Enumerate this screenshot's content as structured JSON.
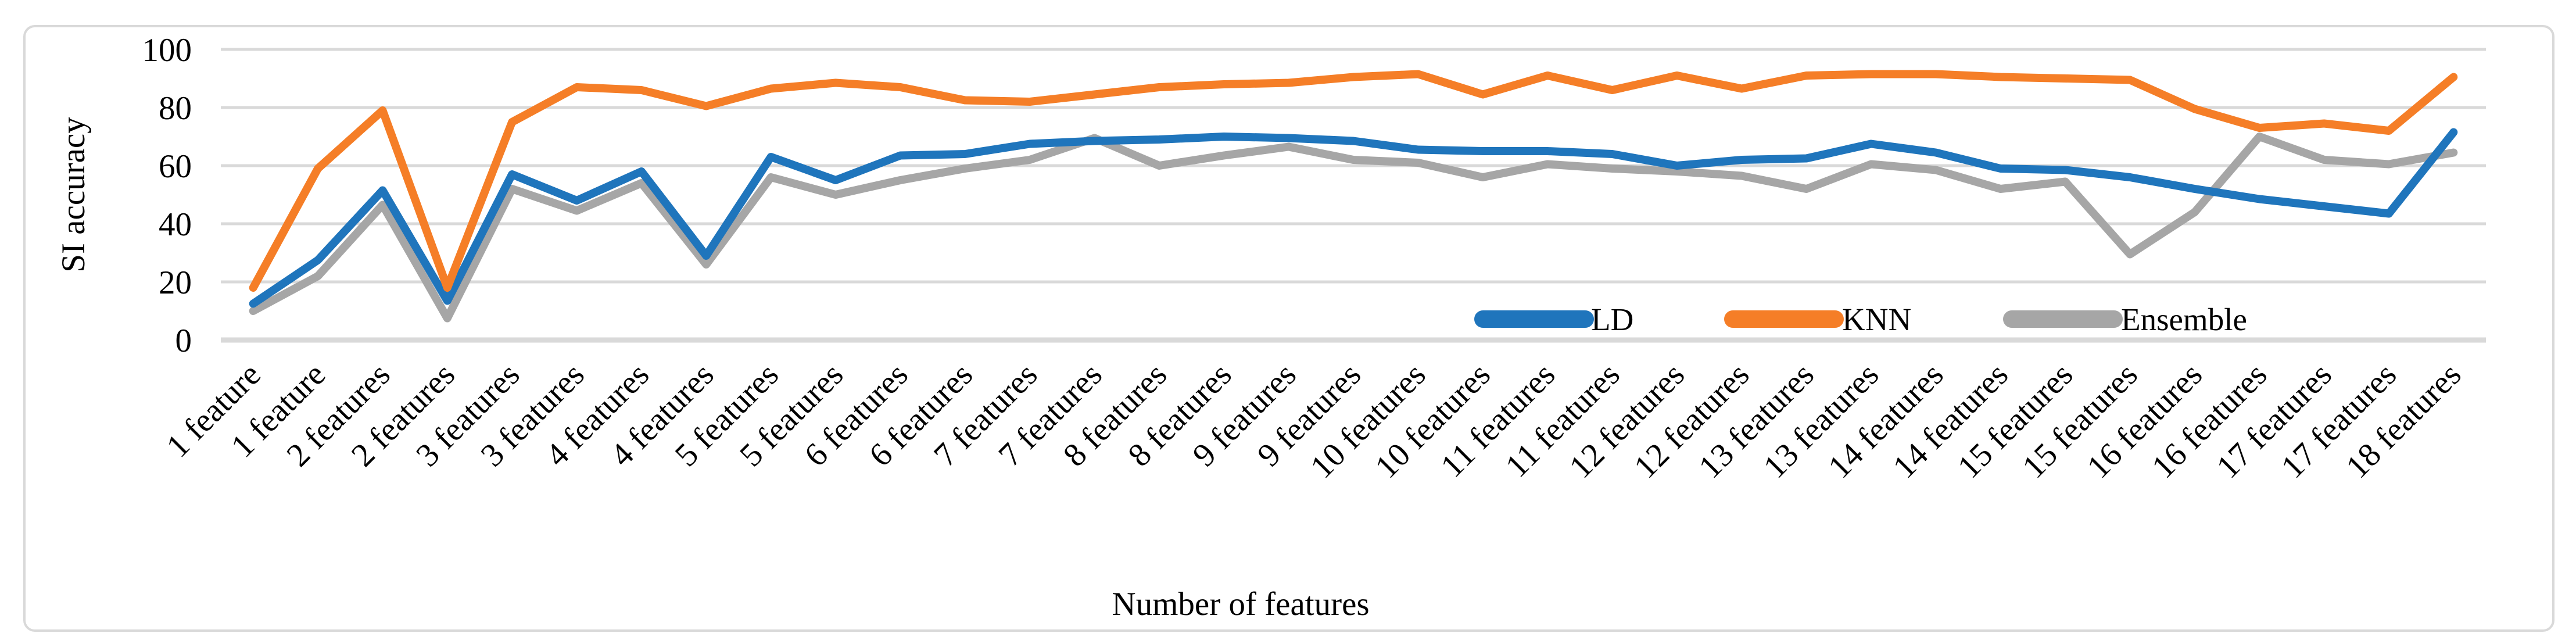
{
  "figure": {
    "background_color": "#FFFFFF",
    "border_color": "#D9D9D9",
    "gridline_color": "#D9D9D9"
  },
  "chart_data": {
    "type": "line",
    "title": "",
    "xlabel": "Number of features",
    "ylabel": "SI accuracy",
    "ylim": [
      0,
      100
    ],
    "yticks": [
      0,
      20,
      40,
      60,
      80,
      100
    ],
    "grid": true,
    "legend_position": "inside-bottom-center-right",
    "categories": [
      "1 feature",
      "1 feature",
      "2 features",
      "2 features",
      "3 features",
      "3 features",
      "4 features",
      "4 features",
      "5 features",
      "5 features",
      "6 features",
      "6 features",
      "7 features",
      "7 features",
      "8 features",
      "8 features",
      "9 features",
      "9 features",
      "10 features",
      "10 features",
      "11 features",
      "11 features",
      "12 features",
      "12 features",
      "13 features",
      "13 features",
      "14 features",
      "14 features",
      "15 features",
      "15 features",
      "16 features",
      "16 features",
      "17 features",
      "17 features",
      "18 features"
    ],
    "series": [
      {
        "name": "LD",
        "color": "#1F75BC",
        "values": [
          12.5,
          27.5,
          51.5,
          13.5,
          57,
          48,
          58,
          29,
          63,
          55,
          63.5,
          64,
          67.5,
          68.5,
          69,
          70,
          69.5,
          68.5,
          65.5,
          65,
          65,
          64,
          60,
          62,
          62.5,
          67.5,
          64.5,
          59,
          58.5,
          56,
          52,
          48.5,
          46,
          43.5,
          71.5
        ]
      },
      {
        "name": "KNN",
        "color": "#F57E27",
        "values": [
          18,
          59,
          79,
          18,
          75,
          87,
          86,
          80.5,
          86.5,
          88.5,
          87,
          82.5,
          82,
          84.5,
          87,
          88,
          88.5,
          90.5,
          91.5,
          84.5,
          91,
          86,
          91,
          86.5,
          91,
          91.5,
          91.5,
          90.5,
          90,
          89.5,
          79.5,
          73,
          74.5,
          72,
          90.5
        ]
      },
      {
        "name": "Ensemble",
        "color": "#A6A6A6",
        "values": [
          10,
          22,
          46.5,
          7.5,
          52,
          44.5,
          54,
          26,
          56,
          50,
          55,
          59,
          62,
          69.5,
          60,
          63.5,
          66.5,
          62,
          61,
          56,
          60.5,
          59,
          58,
          56.5,
          52,
          60.5,
          58.5,
          52,
          54.5,
          29.5,
          44,
          70,
          62,
          60.5,
          64.5
        ]
      }
    ]
  }
}
